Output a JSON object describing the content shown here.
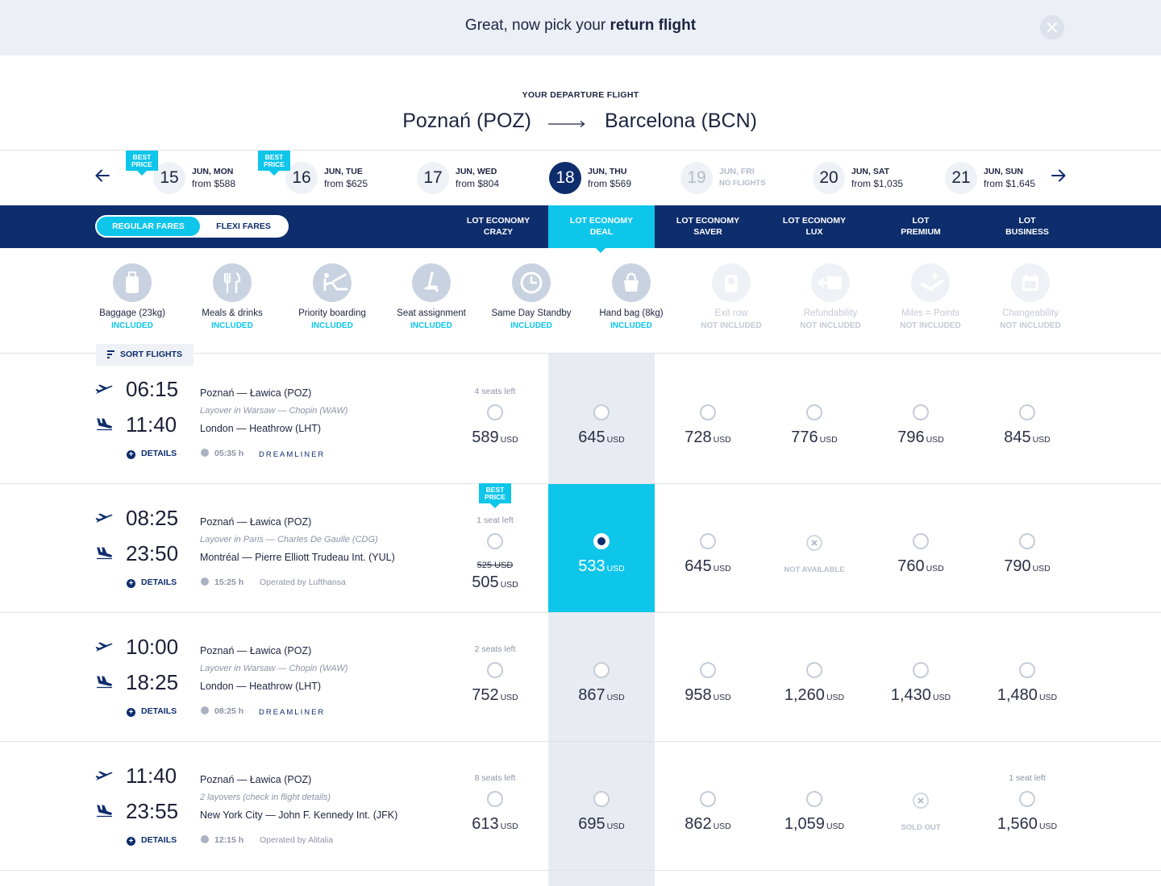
{
  "banner": {
    "title_prefix": "Great, now pick your",
    "title_bold": "return flight"
  },
  "departure": {
    "label": "YOUR DEPARTURE FLIGHT",
    "from": "Poznań (POZ)",
    "to": "Barcelona (BCN)"
  },
  "dates": [
    {
      "num": "15",
      "day": "JUN, MON",
      "price": "from $588",
      "badge": "BEST PRICE",
      "state": "normal"
    },
    {
      "num": "16",
      "day": "JUN, TUE",
      "price": "from $625",
      "badge": "BEST PRICE",
      "state": "normal"
    },
    {
      "num": "17",
      "day": "JUN, WED",
      "price": "from $804",
      "state": "normal"
    },
    {
      "num": "18",
      "day": "JUN, THU",
      "price": "from $569",
      "state": "active"
    },
    {
      "num": "19",
      "day": "JUN, FRI",
      "price": "NO FLIGHTS",
      "state": "disabled"
    },
    {
      "num": "20",
      "day": "JUN, SAT",
      "price": "from $1,035",
      "state": "normal"
    },
    {
      "num": "21",
      "day": "JUN, SUN",
      "price": "from $1,645",
      "state": "normal"
    }
  ],
  "fare_toggle": {
    "regular": "REGULAR FARES",
    "flexi": "FLEXI FARES",
    "selected": "regular"
  },
  "fare_columns": [
    {
      "line1": "LOT ECONOMY",
      "line2": "CRAZY"
    },
    {
      "line1": "LOT ECONOMY",
      "line2": "DEAL",
      "active": true
    },
    {
      "line1": "LOT ECONOMY",
      "line2": "SAVER"
    },
    {
      "line1": "LOT ECONOMY",
      "line2": "LUX"
    },
    {
      "line1": "LOT",
      "line2": "PREMIUM"
    },
    {
      "line1": "LOT",
      "line2": "BUSINESS"
    }
  ],
  "features": [
    {
      "name": "Baggage (23kg)",
      "status": "INCLUDED",
      "icon": "suitcase-icon",
      "included": true
    },
    {
      "name": "Meals & drinks",
      "status": "INCLUDED",
      "icon": "cutlery-icon",
      "included": true
    },
    {
      "name": "Priority boarding",
      "status": "INCLUDED",
      "icon": "priority-boarding-icon",
      "included": true
    },
    {
      "name": "Seat assignment",
      "status": "INCLUDED",
      "icon": "seat-icon",
      "included": true
    },
    {
      "name": "Same Day Standby",
      "status": "INCLUDED",
      "icon": "standby-clock-icon",
      "included": true
    },
    {
      "name": "Hand bag (8kg)",
      "status": "INCLUDED",
      "icon": "handbag-icon",
      "included": true
    },
    {
      "name": "Exit row",
      "status": "NOT INCLUDED",
      "icon": "exit-row-icon",
      "included": false
    },
    {
      "name": "Refundability",
      "status": "NOT INCLUDED",
      "icon": "refund-icon",
      "included": false
    },
    {
      "name": "Miles = Points",
      "status": "NOT INCLUDED",
      "icon": "miles-icon",
      "included": false
    },
    {
      "name": "Changeability",
      "status": "NOT INCLUDED",
      "icon": "calendar-icon",
      "included": false
    }
  ],
  "sort_label": "SORT FLIGHTS",
  "details_label": "DETAILS",
  "currency": "USD",
  "flights": [
    {
      "depart": "06:15",
      "arrive": "11:40",
      "from": "Poznań — Ławica (POZ)",
      "layover": "Layover in Warsaw — Chopin (WAW)",
      "to": "London — Heathrow (LHT)",
      "duration": "05:35 h",
      "operator": "DREAMLINER",
      "is_dreamliner": true,
      "prices": [
        {
          "value": "589",
          "seats": "4 seats left"
        },
        {
          "value": "645"
        },
        {
          "value": "728"
        },
        {
          "value": "776"
        },
        {
          "value": "796"
        },
        {
          "value": "845"
        }
      ]
    },
    {
      "depart": "08:25",
      "arrive": "23:50",
      "from": "Poznań — Ławica (POZ)",
      "layover": "Layover in Paris — Charles De Gaulle (CDG)",
      "to": "Montréal — Pierre Elliott Trudeau Int. (YUL)",
      "duration": "15:25 h",
      "operator": "Operated by Lufthansa",
      "is_dreamliner": false,
      "prices": [
        {
          "value": "505",
          "old": "525 USD",
          "seats": "1 seat left",
          "badge": "BEST PRICE"
        },
        {
          "value": "533",
          "selected": true
        },
        {
          "value": "645"
        },
        {
          "unavailable": "NOT AVAILABLE"
        },
        {
          "value": "760"
        },
        {
          "value": "790"
        }
      ]
    },
    {
      "depart": "10:00",
      "arrive": "18:25",
      "from": "Poznań — Ławica (POZ)",
      "layover": "Layover in Warsaw — Chopin (WAW)",
      "to": "London — Heathrow (LHT)",
      "duration": "08:25 h",
      "operator": "DREAMLINER",
      "is_dreamliner": true,
      "prices": [
        {
          "value": "752",
          "seats": "2 seats left"
        },
        {
          "value": "867"
        },
        {
          "value": "958"
        },
        {
          "value": "1,260"
        },
        {
          "value": "1,430"
        },
        {
          "value": "1,480"
        }
      ]
    },
    {
      "depart": "11:40",
      "arrive": "23:55",
      "from": "Poznań — Ławica (POZ)",
      "layover": "2 layovers (check in flight details)",
      "to": "New York City — John F. Kennedy Int. (JFK)",
      "duration": "12:15 h",
      "operator": "Operated by Alitalia",
      "is_dreamliner": false,
      "prices": [
        {
          "value": "613",
          "seats": "8 seats left"
        },
        {
          "value": "695"
        },
        {
          "value": "862"
        },
        {
          "value": "1,059"
        },
        {
          "unavailable": "SOLD OUT"
        },
        {
          "value": "1,560",
          "seats": "1 seat left"
        }
      ]
    }
  ],
  "colors": {
    "navy": "#0d2d6c",
    "cyan": "#0ec5ea",
    "banner_bg": "#eceff5",
    "column_bg": "#e8ecf2"
  }
}
